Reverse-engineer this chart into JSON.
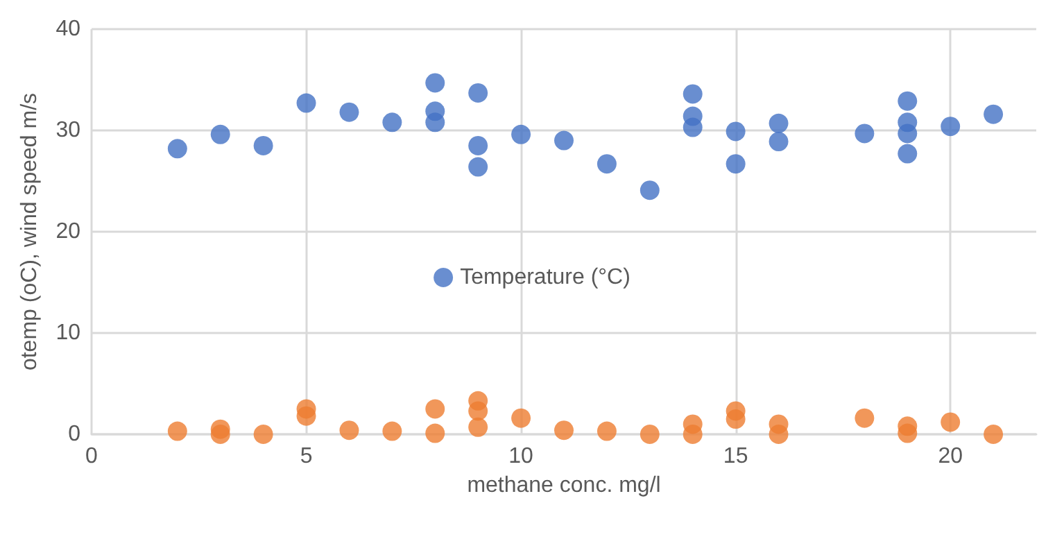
{
  "chart_data": {
    "type": "scatter",
    "xlabel": "methane conc. mg/l",
    "ylabel": "otemp (oC), wind speed m/s",
    "xlim": [
      0,
      22
    ],
    "xticks": [
      0,
      5,
      10,
      15,
      20
    ],
    "ylim": [
      0,
      40
    ],
    "yticks": [
      0,
      10,
      20,
      30,
      40
    ],
    "grid": true,
    "legend": "center",
    "marker": "circle",
    "series": [
      {
        "name": "Temperature (°C)",
        "color": "#4472c4",
        "x": [
          2,
          3,
          4,
          5,
          6,
          7,
          8,
          8,
          8,
          9,
          9,
          9,
          10,
          11,
          12,
          13,
          14,
          14,
          14,
          15,
          15,
          16,
          16,
          18,
          19,
          19,
          19,
          19,
          20,
          21
        ],
        "values": [
          28.2,
          29.6,
          28.5,
          32.7,
          31.8,
          30.8,
          34.7,
          31.9,
          30.8,
          33.7,
          28.5,
          26.4,
          29.6,
          29.0,
          26.7,
          24.1,
          33.6,
          31.4,
          30.3,
          29.9,
          26.7,
          30.7,
          28.9,
          29.7,
          32.9,
          30.8,
          29.7,
          27.7,
          30.4,
          31.6
        ]
      },
      {
        "color": "#ed7d31",
        "x": [
          2,
          3,
          3,
          4,
          5,
          5,
          6,
          7,
          8,
          8,
          9,
          9,
          9,
          10,
          11,
          12,
          13,
          14,
          14,
          15,
          15,
          16,
          16,
          18,
          19,
          19,
          20,
          21
        ],
        "values": [
          0.3,
          0.5,
          0,
          0,
          2.5,
          1.8,
          0.4,
          0.3,
          2.5,
          0.1,
          3.3,
          2.3,
          0.7,
          1.6,
          0.4,
          0.3,
          0,
          1.0,
          0,
          2.3,
          1.5,
          1.0,
          0,
          1.6,
          0.8,
          0.1,
          1.2,
          0
        ]
      }
    ]
  }
}
